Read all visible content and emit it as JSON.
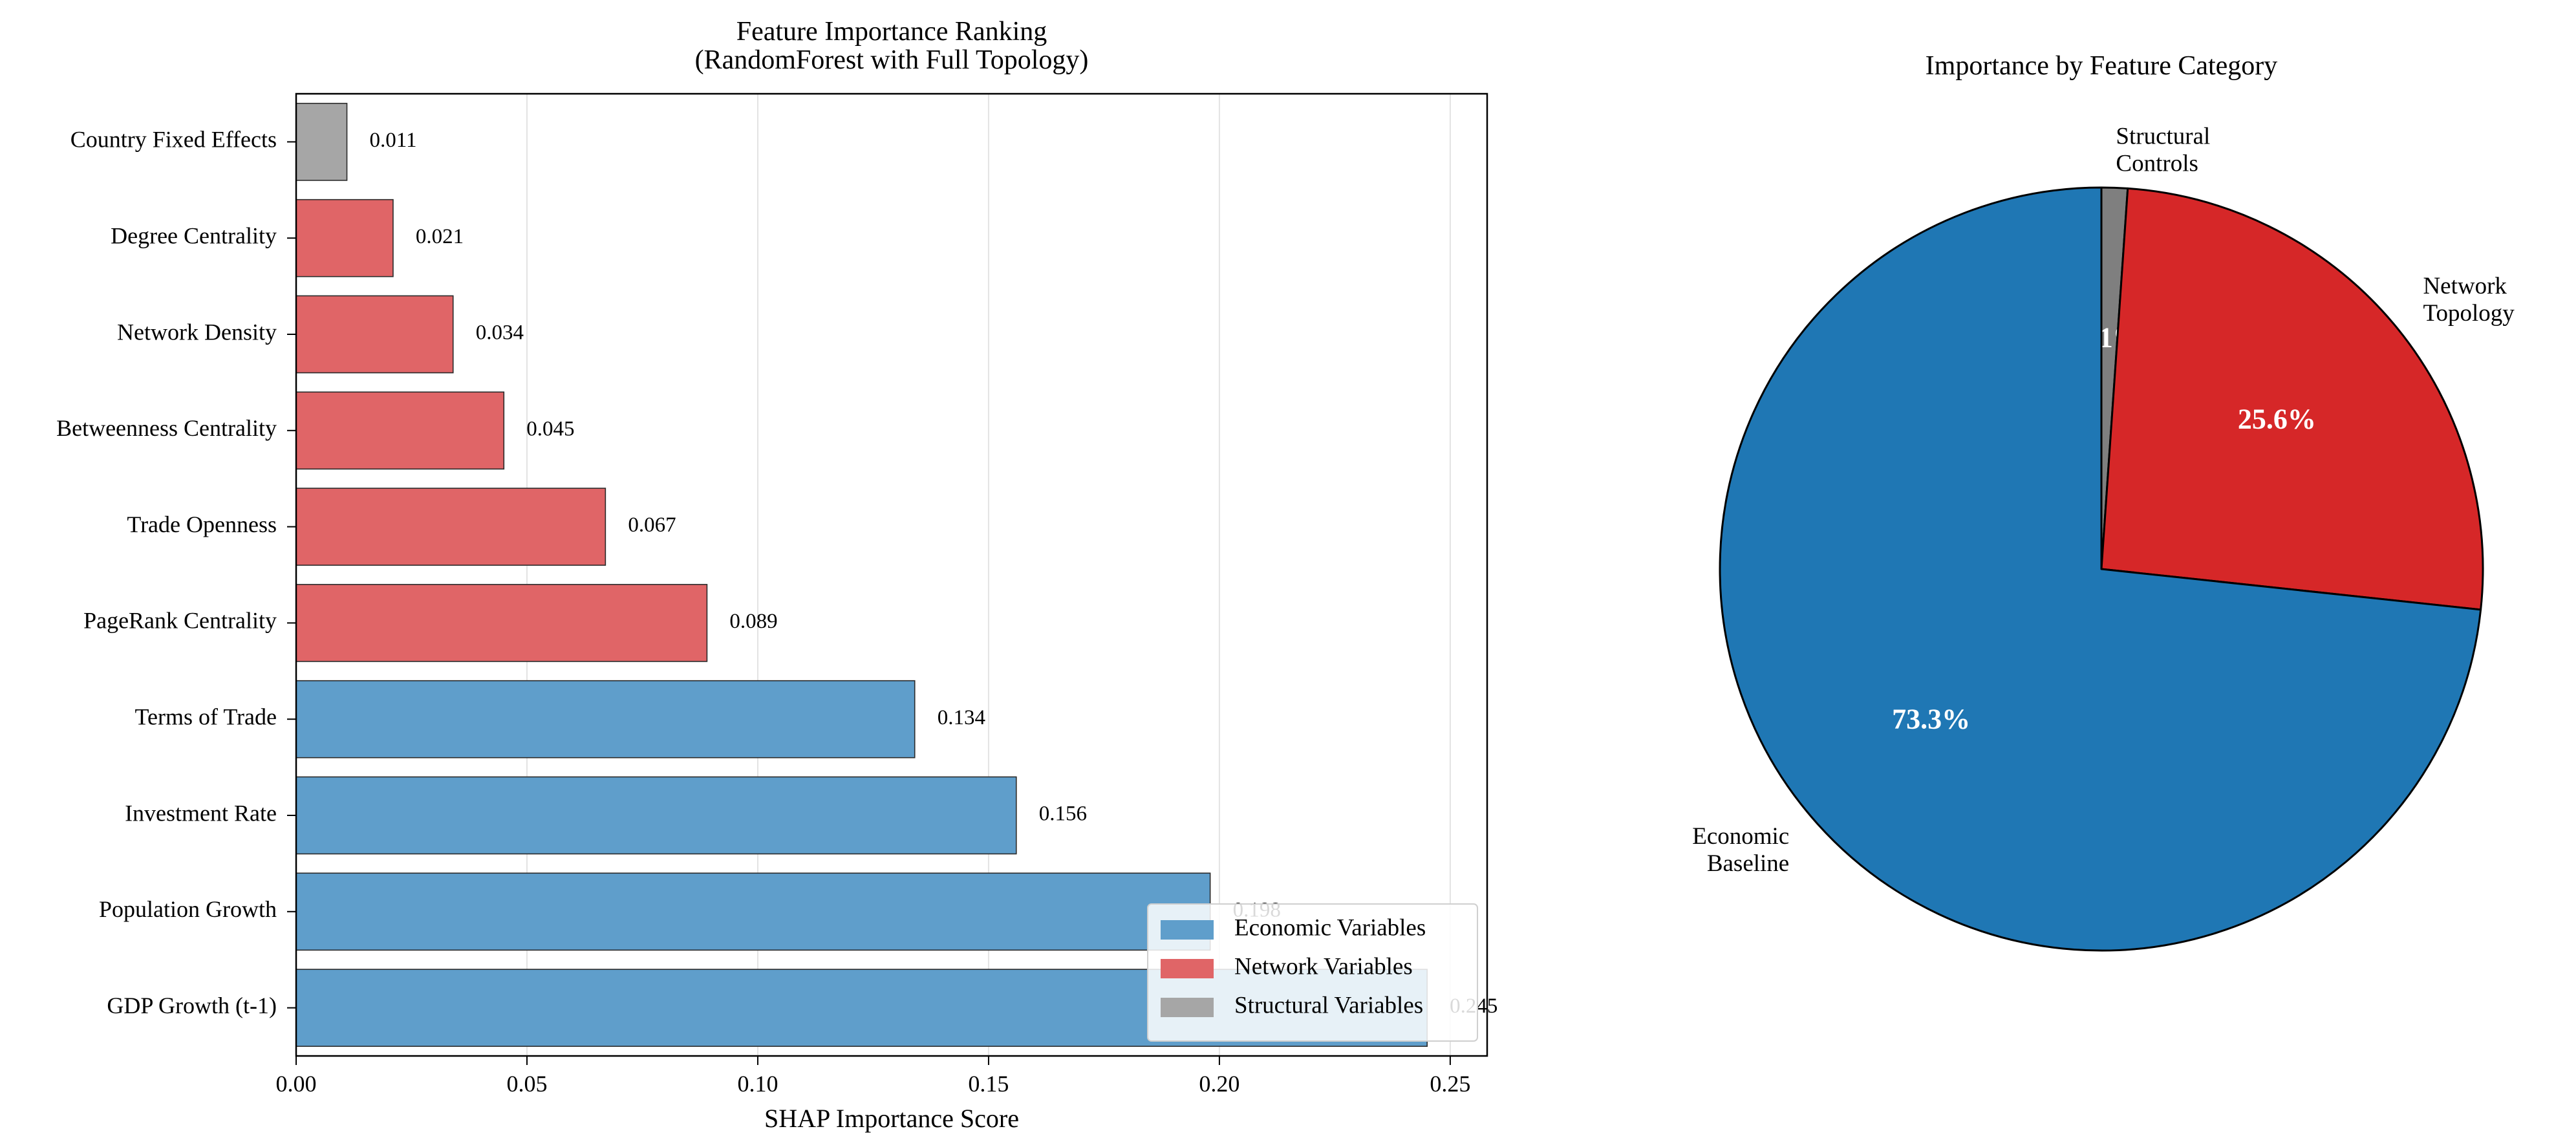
{
  "colors": {
    "economic_bar": "#5f9ecb",
    "network_bar": "#e06567",
    "structural_bar": "#a6a6a6",
    "pie_economic": "#1f77b4",
    "pie_network": "#d62728",
    "pie_structural": "#7f7f7f",
    "grid": "#e3e3e3"
  },
  "chart_data": [
    {
      "type": "bar",
      "orientation": "horizontal",
      "title": "Feature Importance Ranking\n(RandomForest with Full Topology)",
      "xlabel": "SHAP Importance Score",
      "ylabel": "",
      "xlim": [
        0,
        0.258
      ],
      "xticks": [
        "0.00",
        "0.05",
        "0.10",
        "0.15",
        "0.20",
        "0.25"
      ],
      "grid": "x",
      "legend_position": "lower-right",
      "legend": [
        {
          "label": "Economic Variables",
          "group": "economic"
        },
        {
          "label": "Network Variables",
          "group": "network"
        },
        {
          "label": "Structural Variables",
          "group": "structural"
        }
      ],
      "bars": [
        {
          "category": "Country Fixed Effects",
          "value": 0.011,
          "label": "0.011",
          "group": "structural"
        },
        {
          "category": "Degree Centrality",
          "value": 0.021,
          "label": "0.021",
          "group": "network"
        },
        {
          "category": "Network Density",
          "value": 0.034,
          "label": "0.034",
          "group": "network"
        },
        {
          "category": "Betweenness Centrality",
          "value": 0.045,
          "label": "0.045",
          "group": "network"
        },
        {
          "category": "Trade Openness",
          "value": 0.067,
          "label": "0.067",
          "group": "network"
        },
        {
          "category": "PageRank Centrality",
          "value": 0.089,
          "label": "0.089",
          "group": "network"
        },
        {
          "category": "Terms of Trade",
          "value": 0.134,
          "label": "0.134",
          "group": "economic"
        },
        {
          "category": "Investment Rate",
          "value": 0.156,
          "label": "0.156",
          "group": "economic"
        },
        {
          "category": "Population Growth",
          "value": 0.198,
          "label": "0.198",
          "group": "economic"
        },
        {
          "category": "GDP Growth (t-1)",
          "value": 0.245,
          "label": "0.245",
          "group": "economic"
        }
      ]
    },
    {
      "type": "pie",
      "title": "Importance by Feature Category",
      "start_angle_deg": 90,
      "direction": "clockwise",
      "slices": [
        {
          "label": "Structural\nControls",
          "value": 1.1,
          "pct_label": "1.1%",
          "group": "structural"
        },
        {
          "label": "Network\nTopology",
          "value": 25.6,
          "pct_label": "25.6%",
          "group": "network"
        },
        {
          "label": "Economic\nBaseline",
          "value": 73.3,
          "pct_label": "73.3%",
          "group": "economic"
        }
      ]
    }
  ]
}
